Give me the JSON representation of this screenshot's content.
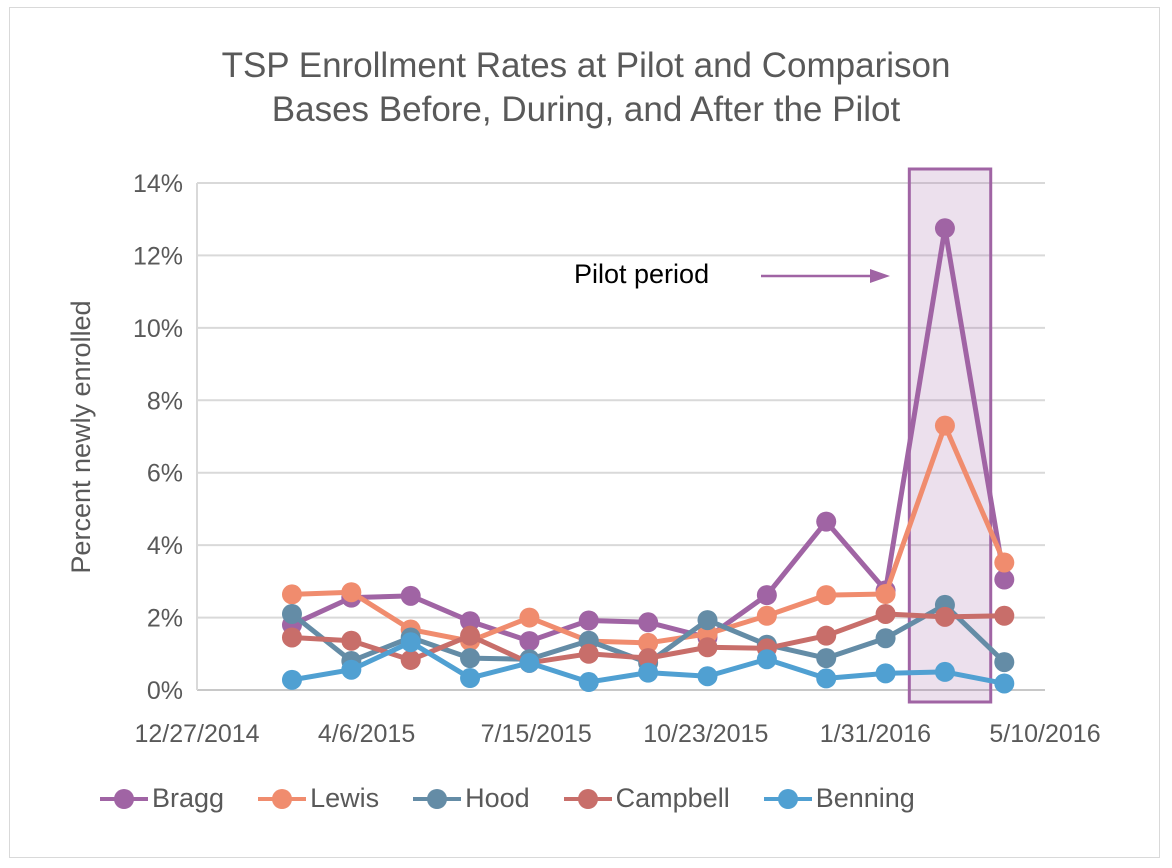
{
  "chart_data": {
    "type": "line",
    "title": "TSP Enrollment Rates at Pilot and Comparison Bases Before, During, and After the Pilot",
    "title_lines": [
      "TSP Enrollment Rates at Pilot and Comparison",
      "Bases Before, During, and After the Pilot"
    ],
    "xlabel": "",
    "ylabel": "Percent newly enrolled",
    "x_axis_type": "date",
    "x_ticks": [
      "12/27/2014",
      "4/6/2015",
      "7/15/2015",
      "10/23/2015",
      "1/31/2016",
      "5/10/2016"
    ],
    "x_range_days": [
      0,
      500
    ],
    "x_day_offsets": [
      56,
      91,
      126,
      161,
      196,
      231,
      266,
      301,
      336,
      371,
      406,
      441,
      476
    ],
    "y_ticks": [
      "0%",
      "2%",
      "4%",
      "6%",
      "8%",
      "10%",
      "12%",
      "14%"
    ],
    "ylim": [
      0,
      14
    ],
    "grid": true,
    "legend_position": "bottom",
    "series": [
      {
        "name": "Bragg",
        "color": "#a064a4",
        "values": [
          1.8,
          2.55,
          2.6,
          1.9,
          1.35,
          1.92,
          1.87,
          1.45,
          2.62,
          4.65,
          2.75,
          12.75,
          3.05
        ]
      },
      {
        "name": "Lewis",
        "color": "#f08c6e",
        "values": [
          2.64,
          2.7,
          1.67,
          1.35,
          2.0,
          1.35,
          1.3,
          1.55,
          2.05,
          2.62,
          2.65,
          7.3,
          3.52
        ]
      },
      {
        "name": "Hood",
        "color": "#648ca6",
        "values": [
          2.1,
          0.8,
          1.45,
          0.88,
          0.85,
          1.36,
          0.75,
          1.93,
          1.25,
          0.88,
          1.43,
          2.35,
          0.77
        ]
      },
      {
        "name": "Campbell",
        "color": "#c86e6a",
        "values": [
          1.45,
          1.36,
          0.83,
          1.5,
          0.75,
          1.0,
          0.88,
          1.18,
          1.15,
          1.5,
          2.1,
          2.02,
          2.05
        ]
      },
      {
        "name": "Benning",
        "color": "#50a0d2",
        "values": [
          0.28,
          0.56,
          1.32,
          0.33,
          0.75,
          0.22,
          0.48,
          0.38,
          0.85,
          0.32,
          0.46,
          0.5,
          0.18
        ]
      }
    ],
    "annotations": [
      {
        "text": "Pilot period",
        "type": "arrow-label",
        "points_to": "highlight-box"
      }
    ],
    "highlight": {
      "label": "Pilot period",
      "x_day_range": [
        420,
        468
      ],
      "color": "#a064a4"
    }
  }
}
